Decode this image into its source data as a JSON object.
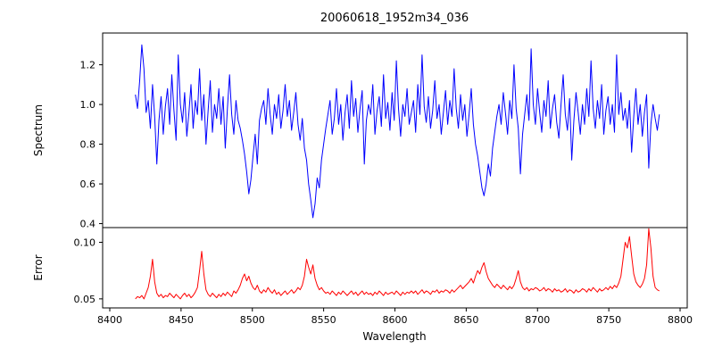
{
  "title": "20060618_1952m34_036",
  "chart_data": [
    {
      "type": "line",
      "title": "20060618_1952m34_036",
      "ylabel": "Spectrum",
      "color": "#0000ff",
      "x_start": 8418,
      "x_step": 1.5,
      "xlim": [
        8395,
        8805
      ],
      "ylim": [
        0.38,
        1.36
      ],
      "yticks": [
        0.4,
        0.6,
        0.8,
        1.0,
        1.2
      ],
      "ytick_labels": [
        "0.4",
        "0.6",
        "0.8",
        "1.0",
        "1.2"
      ],
      "grid": false,
      "values": [
        1.05,
        0.98,
        1.12,
        1.3,
        1.18,
        0.96,
        1.02,
        0.88,
        1.1,
        0.94,
        0.7,
        0.92,
        1.04,
        0.85,
        0.99,
        1.08,
        0.9,
        1.15,
        0.97,
        0.82,
        1.25,
        1.0,
        0.91,
        1.06,
        0.84,
        0.96,
        1.1,
        0.88,
        1.02,
        0.95,
        1.18,
        0.92,
        1.05,
        0.8,
        0.97,
        1.12,
        0.86,
        1.0,
        0.93,
        1.08,
        0.9,
        1.04,
        0.78,
        0.98,
        1.15,
        0.95,
        0.85,
        1.02,
        0.92,
        0.88,
        0.82,
        0.75,
        0.66,
        0.55,
        0.62,
        0.74,
        0.85,
        0.7,
        0.92,
        0.98,
        1.02,
        0.9,
        1.08,
        0.95,
        0.85,
        1.0,
        0.93,
        1.05,
        0.88,
        0.97,
        1.1,
        0.94,
        1.02,
        0.87,
        0.96,
        1.06,
        0.9,
        0.82,
        0.93,
        0.78,
        0.72,
        0.6,
        0.52,
        0.43,
        0.5,
        0.63,
        0.58,
        0.72,
        0.8,
        0.88,
        0.95,
        1.02,
        0.85,
        0.93,
        1.08,
        0.9,
        1.0,
        0.82,
        0.96,
        1.05,
        0.88,
        1.12,
        0.94,
        1.03,
        0.86,
        0.98,
        1.07,
        0.7,
        0.92,
        1.0,
        0.95,
        1.1,
        0.85,
        0.97,
        1.04,
        0.89,
        1.15,
        0.93,
        1.01,
        0.87,
        1.06,
        0.92,
        1.22,
        0.98,
        0.84,
        1.0,
        0.94,
        1.08,
        0.9,
        0.96,
        1.02,
        0.86,
        1.1,
        0.95,
        1.25,
        0.99,
        0.91,
        1.04,
        0.88,
        0.97,
        1.12,
        0.93,
        1.0,
        0.85,
        0.96,
        1.07,
        0.9,
        1.02,
        0.94,
        1.18,
        0.98,
        0.88,
        1.05,
        0.92,
        1.0,
        0.84,
        0.95,
        1.08,
        0.9,
        0.8,
        0.74,
        0.66,
        0.58,
        0.54,
        0.6,
        0.7,
        0.64,
        0.78,
        0.86,
        0.94,
        1.0,
        0.9,
        1.06,
        0.96,
        0.85,
        1.02,
        0.93,
        1.2,
        0.98,
        0.88,
        0.65,
        0.85,
        0.95,
        1.05,
        0.92,
        1.28,
        1.0,
        0.9,
        1.08,
        0.96,
        0.86,
        1.02,
        0.94,
        1.12,
        0.88,
        0.98,
        1.05,
        0.91,
        0.83,
        1.0,
        1.15,
        0.95,
        0.87,
        1.03,
        0.72,
        0.92,
        1.06,
        0.96,
        0.85,
        1.0,
        0.9,
        1.08,
        0.94,
        1.22,
        0.98,
        0.88,
        1.02,
        0.93,
        1.1,
        0.85,
        0.97,
        1.04,
        0.9,
        1.0,
        0.86,
        1.25,
        0.95,
        1.06,
        0.92,
        0.98,
        0.88,
        1.02,
        0.76,
        0.94,
        1.08,
        0.9,
        1.0,
        0.84,
        0.96,
        1.05,
        0.68,
        0.9,
        1.0,
        0.93,
        0.87,
        0.95
      ]
    },
    {
      "type": "line",
      "ylabel": "Error",
      "xlabel": "Wavelength",
      "color": "#ff0000",
      "x_start": 8418,
      "x_step": 1.5,
      "xlim": [
        8395,
        8805
      ],
      "ylim": [
        0.042,
        0.113
      ],
      "yticks": [
        0.05,
        0.1
      ],
      "ytick_labels": [
        "0.05",
        "0.10"
      ],
      "xticks": [
        8400,
        8450,
        8500,
        8550,
        8600,
        8650,
        8700,
        8750,
        8800
      ],
      "xtick_labels": [
        "8400",
        "8450",
        "8500",
        "8550",
        "8600",
        "8650",
        "8700",
        "8750",
        "8800"
      ],
      "grid": false,
      "values": [
        0.05,
        0.052,
        0.051,
        0.053,
        0.05,
        0.055,
        0.06,
        0.07,
        0.085,
        0.065,
        0.055,
        0.052,
        0.054,
        0.051,
        0.053,
        0.052,
        0.055,
        0.053,
        0.051,
        0.054,
        0.052,
        0.05,
        0.053,
        0.055,
        0.052,
        0.054,
        0.051,
        0.053,
        0.056,
        0.06,
        0.075,
        0.092,
        0.072,
        0.058,
        0.054,
        0.052,
        0.055,
        0.053,
        0.051,
        0.054,
        0.052,
        0.055,
        0.053,
        0.056,
        0.054,
        0.052,
        0.057,
        0.055,
        0.058,
        0.062,
        0.068,
        0.072,
        0.066,
        0.07,
        0.064,
        0.06,
        0.058,
        0.062,
        0.057,
        0.055,
        0.058,
        0.056,
        0.06,
        0.057,
        0.055,
        0.058,
        0.054,
        0.056,
        0.053,
        0.055,
        0.057,
        0.054,
        0.056,
        0.058,
        0.055,
        0.057,
        0.06,
        0.058,
        0.062,
        0.07,
        0.085,
        0.078,
        0.072,
        0.08,
        0.068,
        0.062,
        0.058,
        0.06,
        0.057,
        0.055,
        0.056,
        0.054,
        0.057,
        0.055,
        0.053,
        0.056,
        0.054,
        0.057,
        0.055,
        0.053,
        0.055,
        0.057,
        0.054,
        0.056,
        0.053,
        0.055,
        0.057,
        0.054,
        0.056,
        0.054,
        0.055,
        0.053,
        0.056,
        0.054,
        0.057,
        0.055,
        0.053,
        0.056,
        0.054,
        0.055,
        0.056,
        0.054,
        0.057,
        0.055,
        0.053,
        0.056,
        0.054,
        0.056,
        0.055,
        0.057,
        0.055,
        0.057,
        0.054,
        0.056,
        0.058,
        0.055,
        0.057,
        0.056,
        0.054,
        0.057,
        0.056,
        0.058,
        0.055,
        0.057,
        0.056,
        0.058,
        0.057,
        0.055,
        0.058,
        0.056,
        0.058,
        0.06,
        0.062,
        0.059,
        0.061,
        0.063,
        0.065,
        0.068,
        0.064,
        0.07,
        0.075,
        0.072,
        0.078,
        0.082,
        0.074,
        0.068,
        0.065,
        0.062,
        0.06,
        0.063,
        0.061,
        0.059,
        0.062,
        0.06,
        0.058,
        0.061,
        0.059,
        0.062,
        0.068,
        0.075,
        0.065,
        0.06,
        0.058,
        0.06,
        0.057,
        0.059,
        0.058,
        0.06,
        0.059,
        0.057,
        0.058,
        0.06,
        0.057,
        0.059,
        0.058,
        0.056,
        0.059,
        0.057,
        0.058,
        0.056,
        0.057,
        0.059,
        0.056,
        0.058,
        0.057,
        0.055,
        0.058,
        0.056,
        0.057,
        0.059,
        0.058,
        0.056,
        0.059,
        0.057,
        0.06,
        0.058,
        0.056,
        0.059,
        0.057,
        0.058,
        0.06,
        0.058,
        0.061,
        0.059,
        0.062,
        0.06,
        0.064,
        0.07,
        0.085,
        0.1,
        0.095,
        0.105,
        0.088,
        0.072,
        0.065,
        0.062,
        0.06,
        0.063,
        0.068,
        0.08,
        0.112,
        0.095,
        0.07,
        0.06,
        0.058,
        0.057
      ]
    }
  ]
}
